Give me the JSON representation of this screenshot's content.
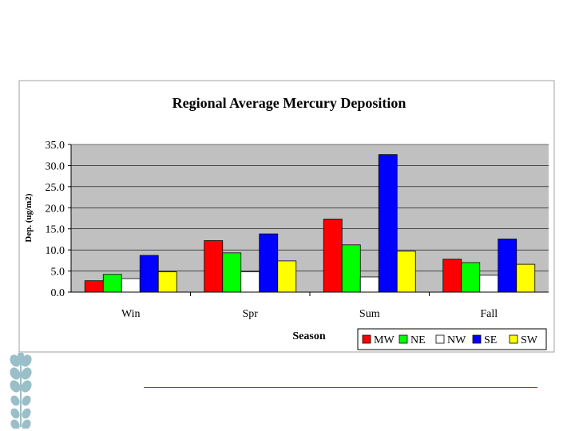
{
  "chart_data": {
    "type": "bar",
    "title": "Regional Average Mercury Deposition",
    "xlabel": "Season",
    "ylabel": "Dep. (ug/m2)",
    "categories": [
      "Win",
      "Spr",
      "Sum",
      "Fall"
    ],
    "ylim": [
      0,
      35
    ],
    "yticks": [
      "0.0",
      "5.0",
      "10.0",
      "15.0",
      "20.0",
      "25.0",
      "30.0",
      "35.0"
    ],
    "grid": true,
    "legend_position": "bottom-right",
    "series": [
      {
        "name": "MW",
        "color": "#ff0000",
        "values": [
          2.7,
          12.2,
          17.3,
          7.8
        ]
      },
      {
        "name": "NE",
        "color": "#00ff00",
        "values": [
          4.2,
          9.3,
          11.2,
          7.0
        ]
      },
      {
        "name": "NW",
        "color": "#ffffff",
        "values": [
          3.2,
          4.8,
          3.6,
          4.0
        ]
      },
      {
        "name": "SE",
        "color": "#0000ff",
        "values": [
          8.7,
          13.8,
          32.6,
          12.6
        ]
      },
      {
        "name": "SW",
        "color": "#ffff00",
        "values": [
          4.8,
          7.4,
          9.7,
          6.6
        ]
      }
    ],
    "plot_background": "#c0c0c0"
  },
  "decoration": {
    "icon": "leaf-sprig-icon",
    "color": "#9bbfc8"
  }
}
